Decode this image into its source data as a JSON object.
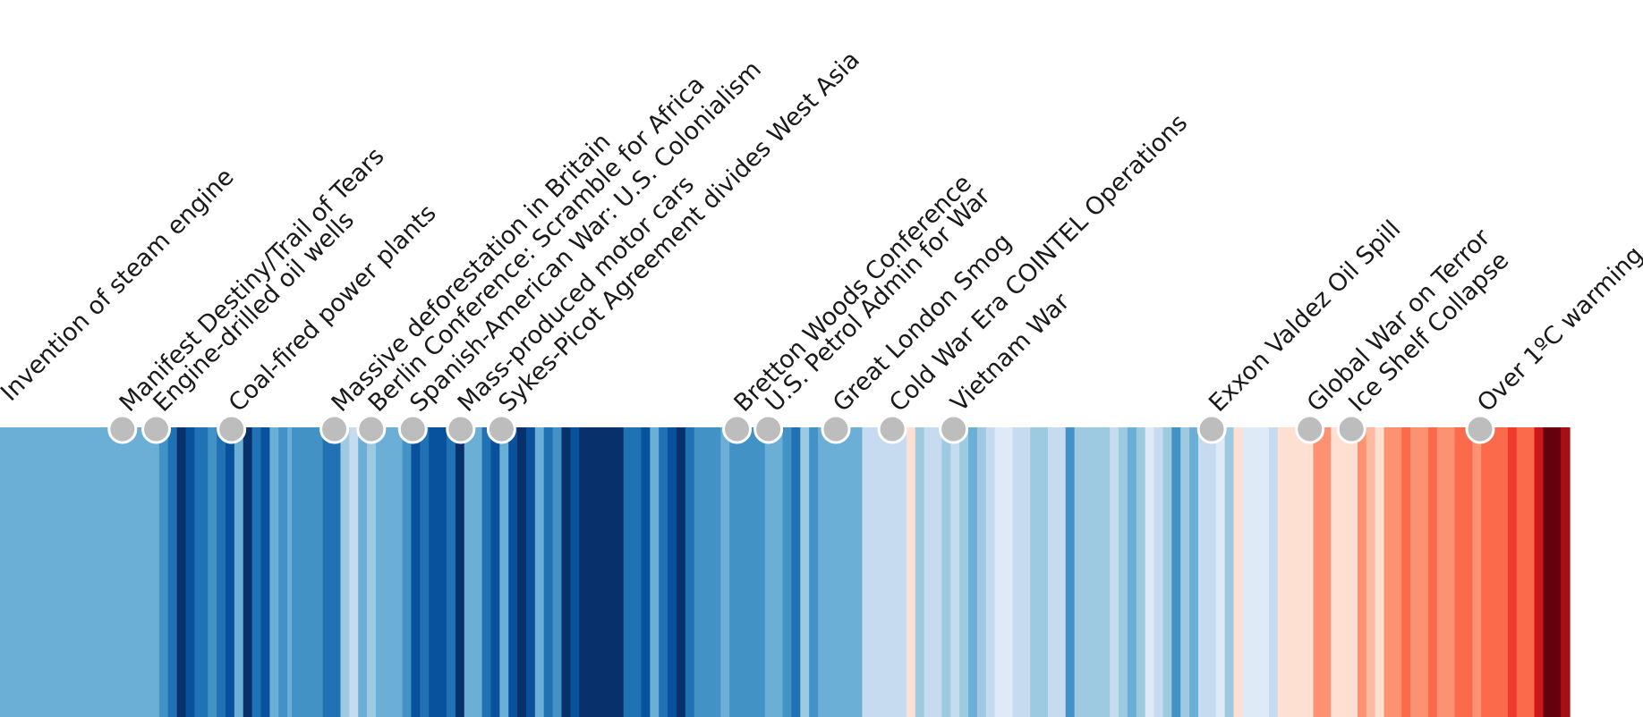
{
  "chart_data": {
    "type": "heatmap",
    "title": "",
    "xlabel": "",
    "ylabel": "",
    "colorscale": [
      "#08306b",
      "#08519c",
      "#2171b5",
      "#4292c6",
      "#6baed6",
      "#9ecae1",
      "#c6dbef",
      "#deebf7",
      "#fee0d2",
      "#fcbba1",
      "#fc9272",
      "#fb6a4a",
      "#ef3b2c",
      "#cb181d",
      "#a50f15",
      "#67000d"
    ],
    "stripes": [
      4,
      4,
      4,
      4,
      4,
      4,
      4,
      4,
      4,
      4,
      4,
      4,
      4,
      4,
      4,
      4,
      4,
      4,
      4,
      4,
      4,
      4,
      4,
      4,
      4,
      4,
      4,
      4,
      4,
      4,
      4,
      4,
      4,
      4,
      4,
      4,
      3,
      3,
      2,
      2,
      0,
      0,
      1,
      1,
      2,
      2,
      2,
      3,
      3,
      2,
      2,
      1,
      1,
      4,
      4,
      0,
      0,
      2,
      2,
      1,
      1,
      4,
      4,
      3,
      3,
      4,
      3,
      3,
      3,
      3,
      3,
      3,
      3,
      2,
      2,
      2,
      2,
      5,
      5,
      6,
      6,
      4,
      4,
      5,
      5,
      4,
      4,
      4,
      4,
      4,
      4,
      3,
      3,
      1,
      1,
      2,
      2,
      1,
      1,
      1,
      1,
      2,
      2,
      0,
      0,
      4,
      4,
      4,
      4,
      2,
      2,
      1,
      1,
      4,
      4,
      1,
      1,
      0,
      0,
      1,
      1,
      4,
      4,
      2,
      2,
      3,
      3,
      0,
      0,
      1,
      1,
      0,
      0,
      0,
      0,
      0,
      0,
      0,
      0,
      0,
      0,
      2,
      2,
      2,
      2,
      1,
      1,
      4,
      4,
      2,
      2,
      1,
      1,
      0,
      0,
      2,
      2,
      3,
      3,
      3,
      3,
      3,
      3,
      4,
      4,
      3,
      3,
      3,
      3,
      3,
      3,
      3,
      3,
      4,
      4,
      4,
      4,
      3,
      3,
      2,
      2,
      5,
      5,
      3,
      3,
      4,
      4,
      4,
      4,
      4,
      4,
      4,
      4,
      4,
      4,
      6,
      6,
      6,
      6,
      6,
      6,
      6,
      6,
      6,
      6,
      8,
      8,
      5,
      5,
      6,
      6,
      6,
      6,
      5,
      5,
      6,
      6,
      5,
      5,
      4,
      4,
      5,
      5,
      6,
      6,
      7,
      7,
      7,
      7,
      6,
      6,
      6,
      6,
      5,
      5,
      5,
      5,
      6,
      6,
      6,
      6,
      3,
      3,
      5,
      5,
      5,
      5,
      5,
      5,
      5,
      5,
      6,
      6,
      5,
      5,
      4,
      4,
      5,
      5,
      7,
      7,
      6,
      6,
      5,
      5,
      3,
      3,
      5,
      5,
      4,
      4,
      6,
      6,
      6,
      6,
      7,
      7,
      5,
      5,
      8,
      8,
      7,
      7,
      7,
      7,
      7,
      7,
      6,
      6,
      8,
      8,
      8,
      8,
      8,
      8,
      8,
      8,
      10,
      10,
      10,
      10,
      8,
      8,
      8,
      8,
      8,
      8,
      10,
      10,
      9,
      9,
      8,
      8,
      10,
      10,
      10,
      10,
      11,
      11,
      10,
      10,
      10,
      10,
      11,
      11,
      10,
      10,
      10,
      10,
      11,
      11,
      11,
      11,
      10,
      10,
      11,
      11,
      11,
      11,
      11,
      11,
      12,
      12,
      11,
      11,
      11,
      11,
      13,
      13,
      15,
      15,
      15,
      15,
      14,
      14
    ],
    "events": [
      {
        "label": "Invention of steam engine",
        "pos": 0.0,
        "marker": false
      },
      {
        "label": "Manifest Destiny/Trail of Tears",
        "pos": 0.078,
        "marker": true
      },
      {
        "label": "Engine-drilled oil wells",
        "pos": 0.0995,
        "marker": true
      },
      {
        "label": "Coal-fired power plants",
        "pos": 0.1475,
        "marker": true
      },
      {
        "label": "Massive deforestation in Britain",
        "pos": 0.213,
        "marker": true
      },
      {
        "label": "Berlin Conference: Scramble for Africa",
        "pos": 0.2365,
        "marker": true
      },
      {
        "label": "Spanish-American War: U.S. Colonialism",
        "pos": 0.263,
        "marker": true
      },
      {
        "label": "Mass-produced motor cars",
        "pos": 0.2935,
        "marker": true
      },
      {
        "label": "Sykes-Picot Agreement divides West Asia",
        "pos": 0.3195,
        "marker": true
      },
      {
        "label": "Bretton Woods Conference",
        "pos": 0.4695,
        "marker": true
      },
      {
        "label": "U.S. Petrol Admin for War",
        "pos": 0.4895,
        "marker": true
      },
      {
        "label": "Great London Smog",
        "pos": 0.5325,
        "marker": true
      },
      {
        "label": "Cold War Era COINTEL Operations",
        "pos": 0.5685,
        "marker": true
      },
      {
        "label": "Vietnam War",
        "pos": 0.6075,
        "marker": true
      },
      {
        "label": "Exxon Valdez Oil Spill",
        "pos": 0.772,
        "marker": true
      },
      {
        "label": "Global War on Terror",
        "pos": 0.8345,
        "marker": true
      },
      {
        "label": "Ice Shelf Collapse",
        "pos": 0.861,
        "marker": true
      },
      {
        "label": "Over 1ºC warming",
        "pos": 0.943,
        "marker": true
      }
    ]
  }
}
